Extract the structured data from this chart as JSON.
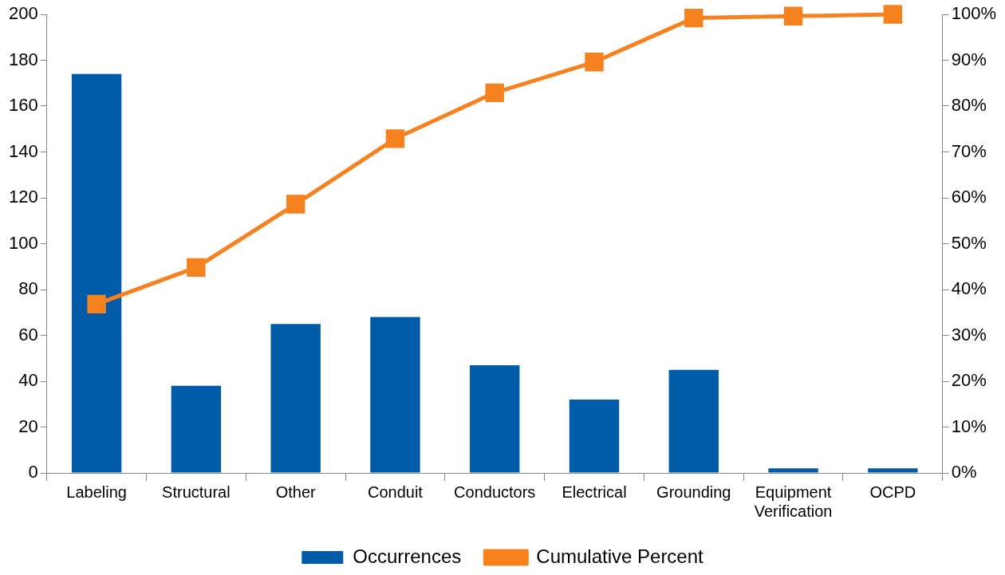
{
  "chart_data": {
    "type": "bar",
    "categories": [
      "Labeling",
      "Structural",
      "Other",
      "Conduit",
      "Conductors",
      "Electrical",
      "Grounding",
      "Equipment\nVerification",
      "OCPD"
    ],
    "series": [
      {
        "name": "Occurrences",
        "color": "#005ca9",
        "values": [
          174,
          38,
          65,
          68,
          47,
          32,
          45,
          2,
          2
        ]
      },
      {
        "name": "Cumulative Percent",
        "type": "line",
        "axis": "y2",
        "color": "#f5821f",
        "marker": "square",
        "values": [
          36.8,
          44.8,
          58.6,
          72.9,
          82.9,
          89.6,
          99.2,
          99.6,
          100
        ]
      }
    ],
    "ylim": [
      0,
      200
    ],
    "yticks": [
      0,
      20,
      40,
      60,
      80,
      100,
      120,
      140,
      160,
      180,
      200
    ],
    "y2lim": [
      0,
      100
    ],
    "y2ticks": [
      {
        "value": 0,
        "label": "0%"
      },
      {
        "value": 10,
        "label": "10%"
      },
      {
        "value": 20,
        "label": "20%"
      },
      {
        "value": 30,
        "label": "30%"
      },
      {
        "value": 40,
        "label": "40%"
      },
      {
        "value": 50,
        "label": "50%"
      },
      {
        "value": 60,
        "label": "60%"
      },
      {
        "value": 70,
        "label": "70%"
      },
      {
        "value": 80,
        "label": "80%"
      },
      {
        "value": 90,
        "label": "90%"
      },
      {
        "value": 100,
        "label": "100%"
      }
    ],
    "grid": false,
    "legend": "bottom"
  }
}
